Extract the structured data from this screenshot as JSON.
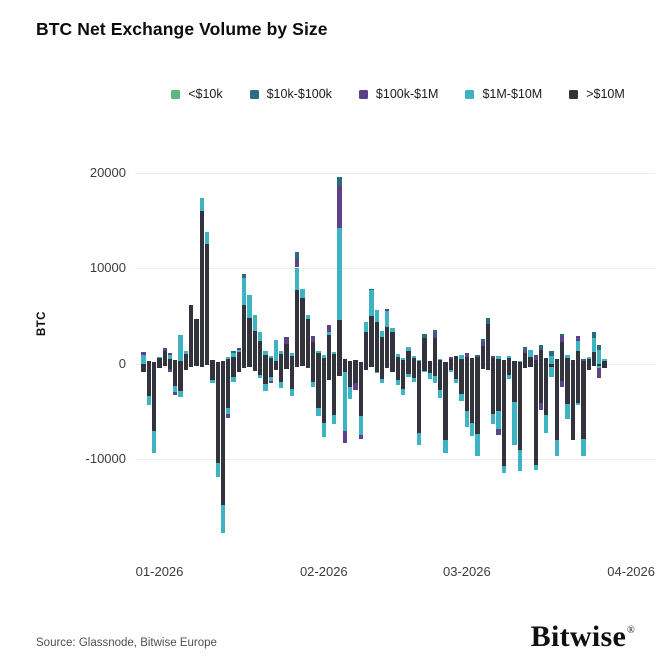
{
  "page": {
    "title": "BTC Net Exchange Volume by Size"
  },
  "legend": {
    "items": [
      {
        "label": "<$10k",
        "color": "#5cb87e"
      },
      {
        "label": "$10k-$100k",
        "color": "#2d6e7e"
      },
      {
        "label": "$100k-$1M",
        "color": "#5e4189"
      },
      {
        "label": "$1M-$10M",
        "color": "#3eb4c2"
      },
      {
        "label": ">$10M",
        "color": "#32333c"
      }
    ]
  },
  "footer": {
    "source": "Source: Glassnode, Bitwise Europe",
    "brand": "Bitwise",
    "registered_mark": "®"
  },
  "chart_data": {
    "type": "bar",
    "subtype": "stacked-diverging",
    "title": "BTC Net Exchange Volume by Size",
    "ylabel": "BTC",
    "grid": true,
    "legend_position": "top-center",
    "ylim": [
      -19500,
      21050
    ],
    "y_ticks": [
      20000,
      10000,
      0,
      -10000
    ],
    "y_tick_labels": [
      "20000",
      "10000",
      "0",
      "-10000"
    ],
    "x_axis": {
      "total_slots": 97,
      "tick_labels": [
        "01-2026",
        "02-2026",
        "03-2026",
        "04-2026"
      ],
      "tick_slots": [
        3.5,
        34.5,
        61.5,
        92.5
      ],
      "note": "daily bars, late Dec 2025 through late Mar 2026"
    },
    "segment_names": [
      ">$10M",
      "$1M-$10M",
      "$100k-$1M",
      "$10k-$100k",
      "<$10k"
    ],
    "segment_colors": [
      "#32333c",
      "#3eb4c2",
      "#5e4189",
      "#2a6b7c",
      "#5cb87e"
    ],
    "stack_order_note": "segments stack outward from zero in the order given; p = positive BTC, n = negative BTC (magnitudes)",
    "bars": [
      {
        "p": [
          0,
          900,
          300,
          0,
          0
        ],
        "n": [
          900,
          0,
          0,
          0,
          0
        ]
      },
      {
        "p": [
          300,
          0,
          0,
          0,
          0
        ],
        "n": [
          3400,
          900,
          0,
          0,
          0
        ]
      },
      {
        "p": [
          200,
          0,
          0,
          0,
          0
        ],
        "n": [
          7000,
          2300,
          0,
          0,
          0
        ]
      },
      {
        "p": [
          600,
          100,
          0,
          0,
          0
        ],
        "n": [
          400,
          0,
          0,
          0,
          0
        ]
      },
      {
        "p": [
          1400,
          0,
          300,
          0,
          0
        ],
        "n": [
          200,
          0,
          0,
          0,
          0
        ]
      },
      {
        "p": [
          500,
          400,
          200,
          0,
          0
        ],
        "n": [
          500,
          0,
          300,
          0,
          0
        ]
      },
      {
        "p": [
          400,
          0,
          0,
          0,
          0
        ],
        "n": [
          2300,
          600,
          400,
          0,
          0
        ]
      },
      {
        "p": [
          300,
          2700,
          0,
          0,
          0
        ],
        "n": [
          2800,
          700,
          0,
          0,
          0
        ]
      },
      {
        "p": [
          1000,
          300,
          0,
          0,
          0
        ],
        "n": [
          600,
          0,
          0,
          0,
          0
        ]
      },
      {
        "p": [
          6200,
          0,
          0,
          0,
          0
        ],
        "n": [
          300,
          0,
          0,
          0,
          0
        ]
      },
      {
        "p": [
          4700,
          0,
          0,
          0,
          0
        ],
        "n": [
          200,
          0,
          0,
          0,
          0
        ]
      },
      {
        "p": [
          16000,
          1400,
          0,
          0,
          0
        ],
        "n": [
          300,
          0,
          0,
          0,
          0
        ]
      },
      {
        "p": [
          12600,
          1200,
          0,
          0,
          0
        ],
        "n": [
          100,
          0,
          0,
          0,
          0
        ]
      },
      {
        "p": [
          400,
          0,
          0,
          0,
          0
        ],
        "n": [
          1700,
          300,
          0,
          0,
          0
        ]
      },
      {
        "p": [
          200,
          0,
          0,
          0,
          0
        ],
        "n": [
          10400,
          1400,
          0,
          0,
          0
        ]
      },
      {
        "p": [
          300,
          0,
          0,
          0,
          0
        ],
        "n": [
          14800,
          2900,
          0,
          0,
          0
        ]
      },
      {
        "p": [
          500,
          200,
          0,
          0,
          0
        ],
        "n": [
          4600,
          700,
          400,
          0,
          0
        ]
      },
      {
        "p": [
          700,
          400,
          0,
          300,
          0
        ],
        "n": [
          1400,
          500,
          0,
          0,
          0
        ]
      },
      {
        "p": [
          1200,
          300,
          200,
          0,
          0
        ],
        "n": [
          800,
          0,
          0,
          0,
          0
        ]
      },
      {
        "p": [
          6200,
          2800,
          0,
          400,
          0
        ],
        "n": [
          400,
          0,
          0,
          0,
          0
        ]
      },
      {
        "p": [
          4800,
          2400,
          0,
          0,
          0
        ],
        "n": [
          300,
          0,
          0,
          0,
          0
        ]
      },
      {
        "p": [
          3400,
          1700,
          0,
          0,
          0
        ],
        "n": [
          700,
          0,
          0,
          0,
          0
        ]
      },
      {
        "p": [
          2400,
          900,
          0,
          0,
          0
        ],
        "n": [
          1200,
          300,
          0,
          0,
          0
        ]
      },
      {
        "p": [
          900,
          500,
          0,
          0,
          0
        ],
        "n": [
          2100,
          700,
          0,
          0,
          0
        ]
      },
      {
        "p": [
          600,
          200,
          0,
          0,
          0
        ],
        "n": [
          1400,
          400,
          200,
          0,
          0
        ]
      },
      {
        "p": [
          300,
          2200,
          0,
          0,
          0
        ],
        "n": [
          600,
          0,
          0,
          0,
          0
        ]
      },
      {
        "p": [
          1000,
          400,
          0,
          0,
          0
        ],
        "n": [
          1900,
          600,
          0,
          0,
          0
        ]
      },
      {
        "p": [
          2100,
          0,
          700,
          0,
          0
        ],
        "n": [
          500,
          0,
          0,
          0,
          0
        ]
      },
      {
        "p": [
          800,
          300,
          0,
          0,
          0
        ],
        "n": [
          2600,
          800,
          0,
          0,
          0
        ]
      },
      {
        "p": [
          7700,
          2400,
          900,
          700,
          0
        ],
        "n": [
          300,
          0,
          0,
          0,
          0
        ]
      },
      {
        "p": [
          6900,
          1000,
          0,
          0,
          0
        ],
        "n": [
          200,
          0,
          0,
          0,
          0
        ]
      },
      {
        "p": [
          4700,
          400,
          0,
          0,
          0
        ],
        "n": [
          400,
          0,
          0,
          0,
          0
        ]
      },
      {
        "p": [
          2300,
          0,
          600,
          0,
          0
        ],
        "n": [
          1900,
          500,
          0,
          0,
          0
        ]
      },
      {
        "p": [
          1100,
          300,
          0,
          0,
          0
        ],
        "n": [
          4600,
          900,
          0,
          0,
          0
        ]
      },
      {
        "p": [
          600,
          300,
          0,
          0,
          0
        ],
        "n": [
          6200,
          1500,
          0,
          0,
          0
        ]
      },
      {
        "p": [
          3000,
          300,
          800,
          0,
          0
        ],
        "n": [
          1700,
          0,
          0,
          0,
          0
        ]
      },
      {
        "p": [
          1000,
          200,
          0,
          0,
          0
        ],
        "n": [
          5400,
          900,
          0,
          0,
          0
        ]
      },
      {
        "p": [
          4600,
          9600,
          4400,
          1000,
          0
        ],
        "n": [
          1300,
          0,
          0,
          0,
          0
        ]
      },
      {
        "p": [
          500,
          0,
          0,
          0,
          0
        ],
        "n": [
          800,
          6200,
          1300,
          0,
          0
        ]
      },
      {
        "p": [
          300,
          0,
          0,
          0,
          0
        ],
        "n": [
          2400,
          1300,
          0,
          0,
          0
        ]
      },
      {
        "p": [
          400,
          0,
          0,
          0,
          0
        ],
        "n": [
          2000,
          0,
          700,
          0,
          0
        ]
      },
      {
        "p": [
          250,
          0,
          0,
          0,
          0
        ],
        "n": [
          5500,
          1900,
          500,
          0,
          0
        ]
      },
      {
        "p": [
          3300,
          1100,
          0,
          0,
          0
        ],
        "n": [
          600,
          0,
          0,
          0,
          0
        ]
      },
      {
        "p": [
          5000,
          2700,
          0,
          200,
          0
        ],
        "n": [
          300,
          0,
          0,
          0,
          0
        ]
      },
      {
        "p": [
          4400,
          1200,
          0,
          0,
          0
        ],
        "n": [
          800,
          200,
          0,
          0,
          0
        ]
      },
      {
        "p": [
          2800,
          600,
          0,
          0,
          0
        ],
        "n": [
          1600,
          400,
          0,
          0,
          0
        ]
      },
      {
        "p": [
          3900,
          1600,
          300,
          0,
          0
        ],
        "n": [
          400,
          0,
          0,
          0,
          0
        ]
      },
      {
        "p": [
          3300,
          500,
          0,
          0,
          0
        ],
        "n": [
          900,
          0,
          0,
          0,
          0
        ]
      },
      {
        "p": [
          700,
          300,
          0,
          0,
          0
        ],
        "n": [
          1700,
          500,
          0,
          0,
          0
        ]
      },
      {
        "p": [
          400,
          200,
          0,
          0,
          0
        ],
        "n": [
          2600,
          700,
          0,
          0,
          0
        ]
      },
      {
        "p": [
          1400,
          400,
          0,
          0,
          0
        ],
        "n": [
          1100,
          300,
          0,
          0,
          0
        ]
      },
      {
        "p": [
          600,
          200,
          0,
          0,
          0
        ],
        "n": [
          1500,
          400,
          0,
          0,
          0
        ]
      },
      {
        "p": [
          300,
          100,
          0,
          0,
          0
        ],
        "n": [
          7200,
          1300,
          0,
          0,
          0
        ]
      },
      {
        "p": [
          2700,
          0,
          0,
          400,
          0
        ],
        "n": [
          700,
          200,
          0,
          0,
          0
        ]
      },
      {
        "p": [
          300,
          0,
          0,
          0,
          0
        ],
        "n": [
          1000,
          600,
          0,
          0,
          0
        ]
      },
      {
        "p": [
          2700,
          0,
          500,
          400,
          0
        ],
        "n": [
          1300,
          700,
          0,
          0,
          0
        ]
      },
      {
        "p": [
          400,
          100,
          0,
          0,
          0
        ],
        "n": [
          2700,
          900,
          0,
          0,
          0
        ]
      },
      {
        "p": [
          250,
          0,
          0,
          0,
          0
        ],
        "n": [
          8000,
          1300,
          0,
          0,
          0
        ]
      },
      {
        "p": [
          500,
          0,
          200,
          0,
          0
        ],
        "n": [
          600,
          200,
          0,
          0,
          0
        ]
      },
      {
        "p": [
          800,
          0,
          0,
          0,
          0
        ],
        "n": [
          1600,
          400,
          0,
          0,
          0
        ]
      },
      {
        "p": [
          500,
          400,
          0,
          0,
          0
        ],
        "n": [
          3200,
          700,
          0,
          0,
          0
        ]
      },
      {
        "p": [
          700,
          0,
          400,
          0,
          0
        ],
        "n": [
          4900,
          1700,
          0,
          0,
          0
        ]
      },
      {
        "p": [
          600,
          0,
          0,
          0,
          0
        ],
        "n": [
          6200,
          1400,
          0,
          0,
          0
        ]
      },
      {
        "p": [
          700,
          0,
          0,
          200,
          0
        ],
        "n": [
          7300,
          2400,
          0,
          0,
          0
        ]
      },
      {
        "p": [
          1900,
          0,
          400,
          300,
          0
        ],
        "n": [
          500,
          0,
          0,
          0,
          0
        ]
      },
      {
        "p": [
          4200,
          0,
          0,
          600,
          0
        ],
        "n": [
          600,
          0,
          0,
          0,
          0
        ]
      },
      {
        "p": [
          600,
          0,
          200,
          0,
          0
        ],
        "n": [
          5300,
          1000,
          0,
          0,
          0
        ]
      },
      {
        "p": [
          500,
          300,
          0,
          0,
          0
        ],
        "n": [
          4900,
          1900,
          600,
          0,
          0
        ]
      },
      {
        "p": [
          400,
          0,
          0,
          0,
          0
        ],
        "n": [
          10700,
          700,
          0,
          0,
          0
        ]
      },
      {
        "p": [
          600,
          200,
          0,
          0,
          0
        ],
        "n": [
          1200,
          400,
          0,
          0,
          0
        ]
      },
      {
        "p": [
          300,
          0,
          0,
          0,
          0
        ],
        "n": [
          4000,
          4500,
          0,
          0,
          0
        ]
      },
      {
        "p": [
          200,
          100,
          0,
          0,
          0
        ],
        "n": [
          9000,
          2200,
          0,
          0,
          0
        ]
      },
      {
        "p": [
          1100,
          0,
          300,
          400,
          0
        ],
        "n": [
          400,
          0,
          0,
          0,
          0
        ]
      },
      {
        "p": [
          700,
          800,
          0,
          0,
          0
        ],
        "n": [
          300,
          0,
          0,
          0,
          0
        ]
      },
      {
        "p": [
          400,
          0,
          500,
          0,
          0
        ],
        "n": [
          10600,
          500,
          0,
          0,
          0
        ]
      },
      {
        "p": [
          1500,
          0,
          0,
          500,
          0
        ],
        "n": [
          4100,
          0,
          700,
          0,
          0
        ]
      },
      {
        "p": [
          600,
          0,
          0,
          0,
          0
        ],
        "n": [
          5400,
          1800,
          0,
          0,
          0
        ]
      },
      {
        "p": [
          0,
          800,
          0,
          500,
          0
        ],
        "n": [
          300,
          1100,
          0,
          0,
          0
        ]
      },
      {
        "p": [
          500,
          0,
          0,
          0,
          0
        ],
        "n": [
          8000,
          1700,
          0,
          0,
          0
        ]
      },
      {
        "p": [
          2300,
          0,
          600,
          200,
          0
        ],
        "n": [
          1800,
          0,
          600,
          0,
          0
        ]
      },
      {
        "p": [
          600,
          300,
          0,
          0,
          0
        ],
        "n": [
          4200,
          1600,
          0,
          0,
          0
        ]
      },
      {
        "p": [
          400,
          0,
          0,
          0,
          0
        ],
        "n": [
          8000,
          0,
          0,
          0,
          0
        ]
      },
      {
        "p": [
          1300,
          1100,
          500,
          0,
          0
        ],
        "n": [
          4100,
          200,
          0,
          0,
          0
        ]
      },
      {
        "p": [
          300,
          0,
          0,
          200,
          0
        ],
        "n": [
          7900,
          1800,
          0,
          0,
          0
        ]
      },
      {
        "p": [
          500,
          200,
          0,
          0,
          0
        ],
        "n": [
          600,
          0,
          0,
          0,
          0
        ]
      },
      {
        "p": [
          1200,
          1500,
          0,
          600,
          0
        ],
        "n": [
          200,
          0,
          0,
          0,
          0
        ]
      },
      {
        "p": [
          0,
          1500,
          0,
          500,
          0
        ],
        "n": [
          200,
          200,
          1100,
          0,
          0
        ]
      },
      {
        "p": [
          300,
          200,
          0,
          0,
          0
        ],
        "n": [
          400,
          0,
          0,
          0,
          0
        ]
      }
    ]
  }
}
